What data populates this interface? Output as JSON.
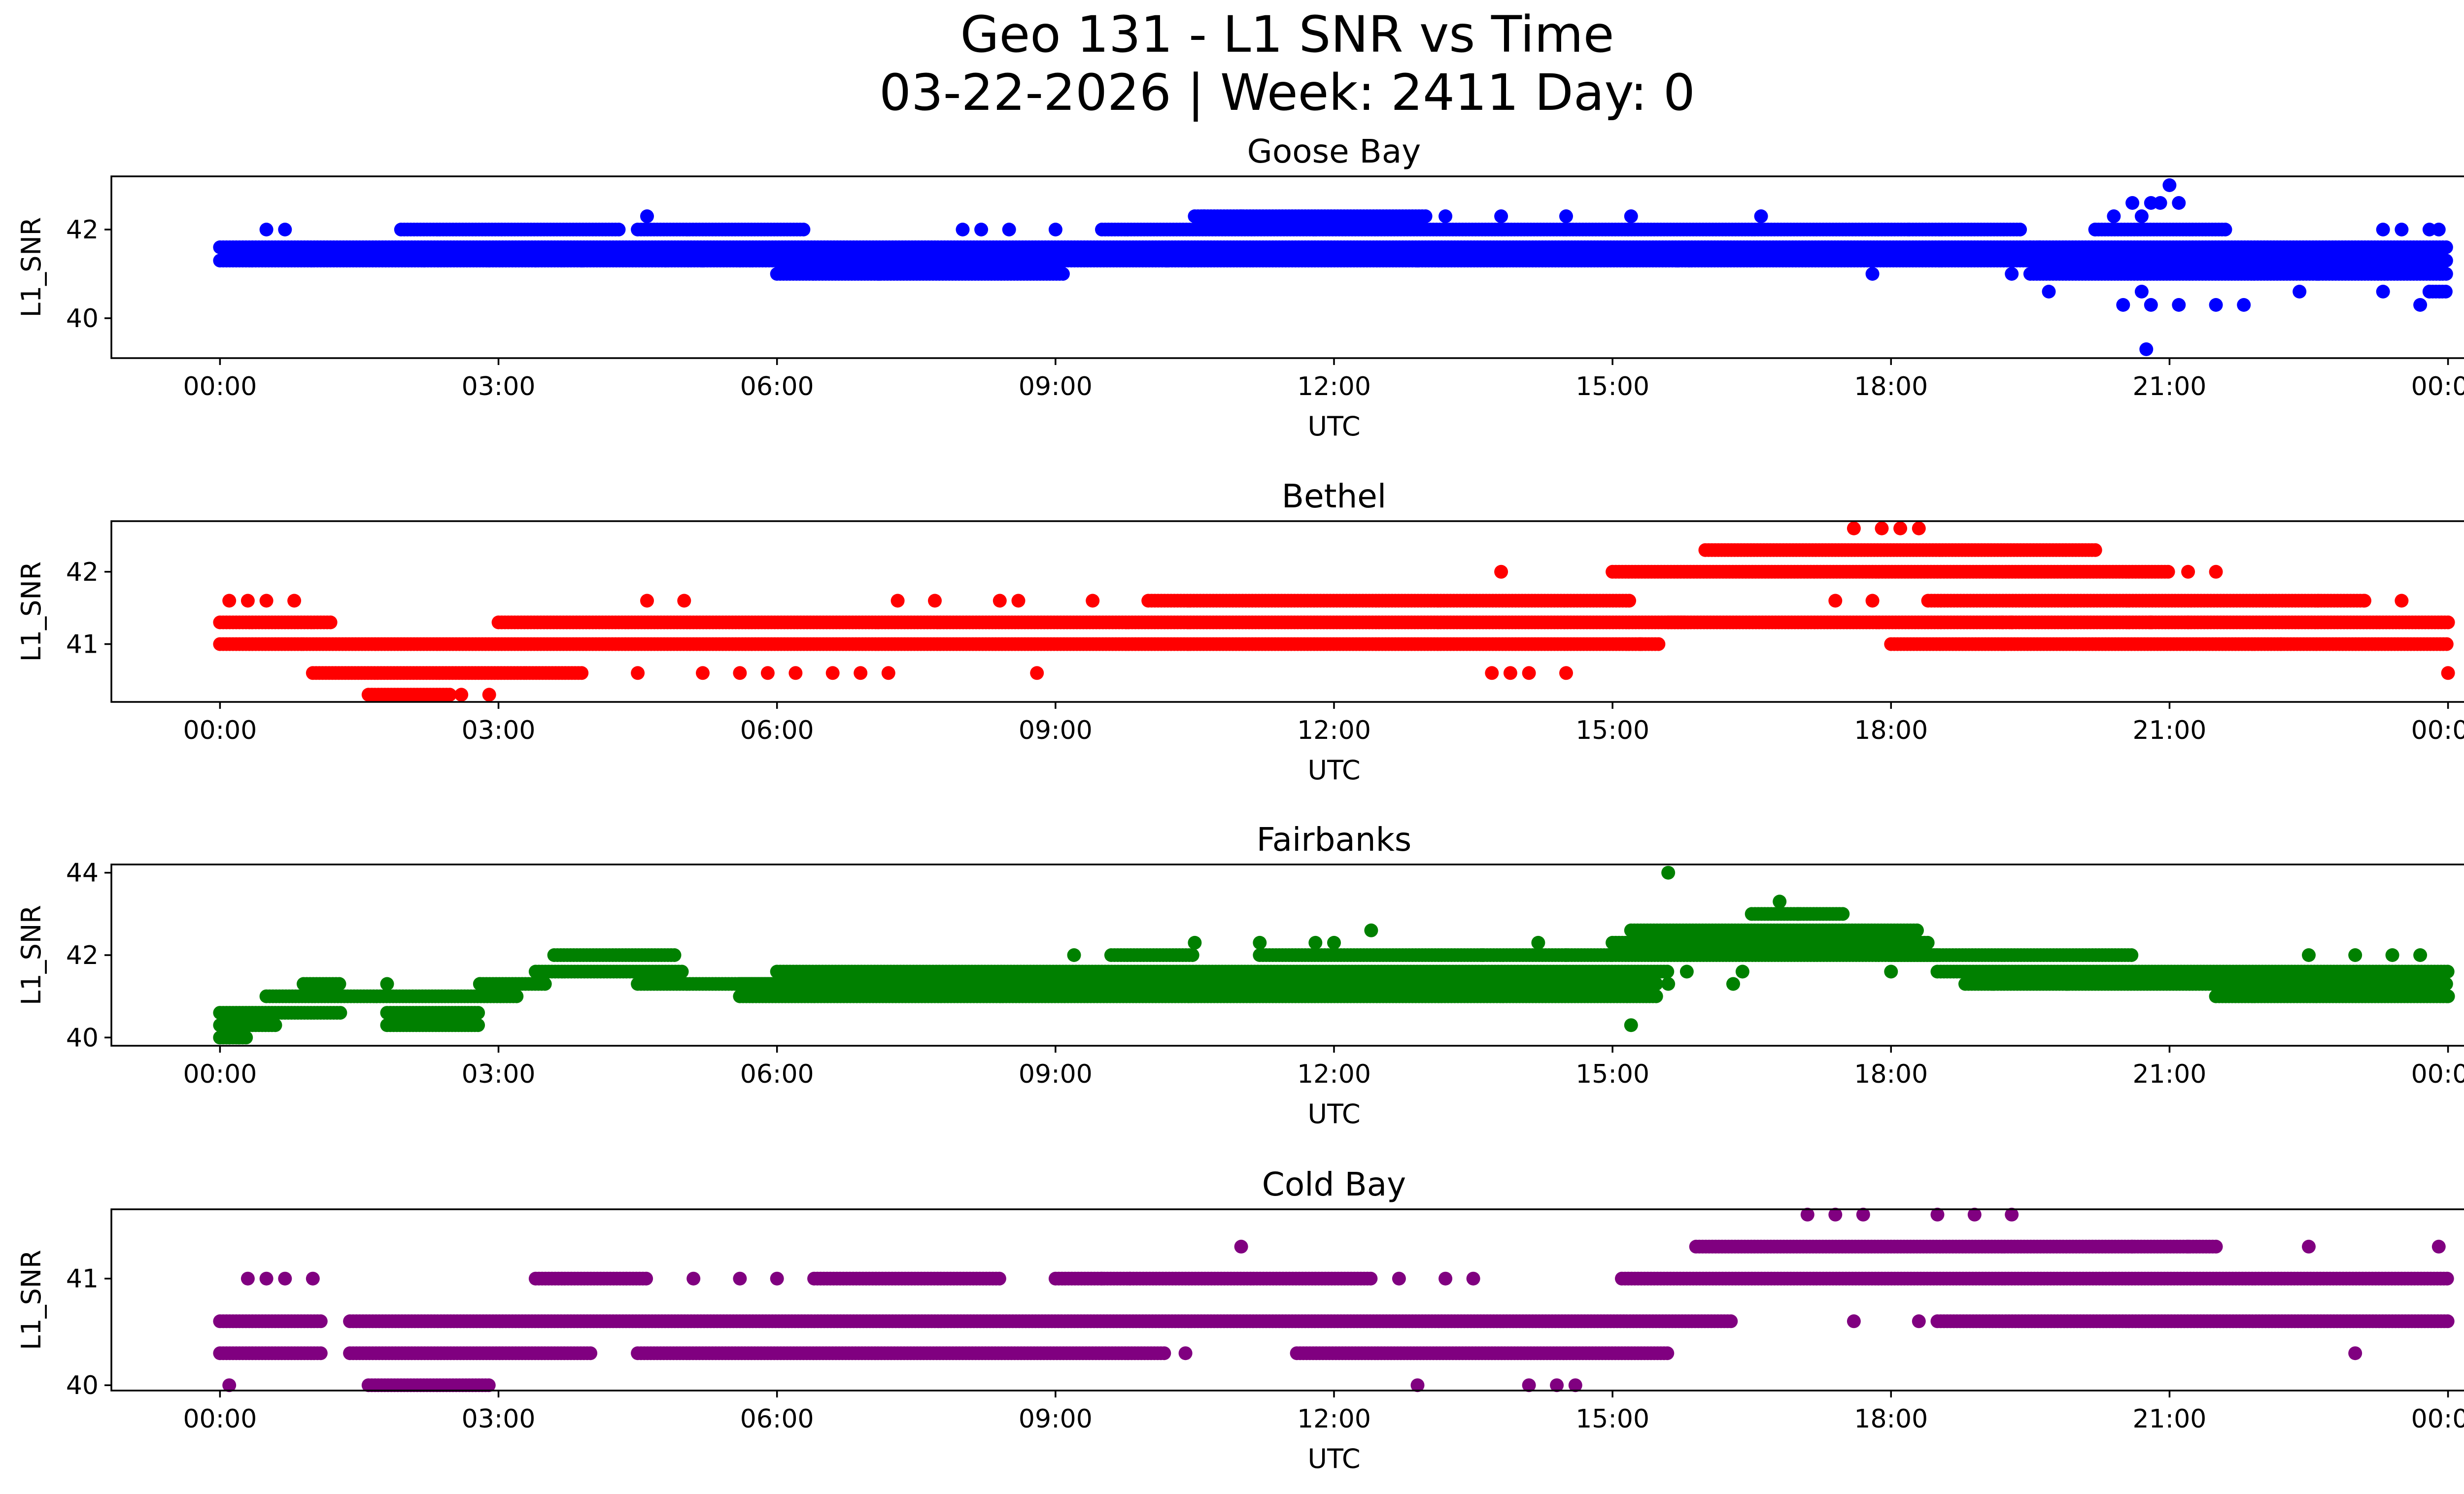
{
  "figure": {
    "title_line1": "Geo 131 - L1 SNR vs Time",
    "title_line2": "03-22-2026 | Week: 2411 Day: 0"
  },
  "chart_data": [
    {
      "type": "scatter",
      "title": "Goose Bay",
      "xlabel": "UTC",
      "ylabel": "L1_SNR",
      "color": "#0000ff",
      "xlim_hours": [
        -1.17,
        25.17
      ],
      "ylim": [
        39.1,
        43.2
      ],
      "xticks_hours": [
        0,
        3,
        6,
        9,
        12,
        15,
        18,
        21,
        24
      ],
      "xtick_labels": [
        "00:00",
        "03:00",
        "06:00",
        "09:00",
        "12:00",
        "15:00",
        "18:00",
        "21:00",
        "00:00"
      ],
      "yticks": [
        40,
        42
      ],
      "ytick_labels": [
        "40",
        "42"
      ],
      "bands": [
        {
          "x_range": [
            0,
            19.5
          ],
          "y_values": [
            41.3,
            41.6
          ]
        },
        {
          "x_range": [
            19.5,
            24
          ],
          "y_values": [
            41.0,
            41.3,
            41.6
          ]
        }
      ],
      "segments": [
        {
          "x_range": [
            1.95,
            4.3
          ],
          "y": 42.0
        },
        {
          "x_range": [
            4.5,
            6.3
          ],
          "y": 42.0
        },
        {
          "x_range": [
            6.0,
            9.1
          ],
          "y": 41.0
        },
        {
          "x_range": [
            9.5,
            18.2
          ],
          "y": 42.0
        },
        {
          "x_range": [
            10.5,
            13.0
          ],
          "y": 42.3
        },
        {
          "x_range": [
            18.2,
            19.4
          ],
          "y": 42.0
        },
        {
          "x_range": [
            20.2,
            21.6
          ],
          "y": 42.0
        },
        {
          "x_range": [
            23.8,
            24.0
          ],
          "y": 40.6
        }
      ],
      "points": [
        [
          0.5,
          42.0
        ],
        [
          0.7,
          42.0
        ],
        [
          2.2,
          41.3
        ],
        [
          2.9,
          41.3
        ],
        [
          3.4,
          41.3
        ],
        [
          3.9,
          41.3
        ],
        [
          4.6,
          42.3
        ],
        [
          4.8,
          41.3
        ],
        [
          5.2,
          41.3
        ],
        [
          5.6,
          41.3
        ],
        [
          7.1,
          41.0
        ],
        [
          8.0,
          42.0
        ],
        [
          8.2,
          42.0
        ],
        [
          8.5,
          42.0
        ],
        [
          9.0,
          42.0
        ],
        [
          10.2,
          41.3
        ],
        [
          10.6,
          42.3
        ],
        [
          11.0,
          42.3
        ],
        [
          12.9,
          41.3
        ],
        [
          13.2,
          42.3
        ],
        [
          13.8,
          42.3
        ],
        [
          14.5,
          42.3
        ],
        [
          15.2,
          42.3
        ],
        [
          15.7,
          41.3
        ],
        [
          16.6,
          42.3
        ],
        [
          17.8,
          41.0
        ],
        [
          19.7,
          40.6
        ],
        [
          20.2,
          42.0
        ],
        [
          20.4,
          42.3
        ],
        [
          20.6,
          42.6
        ],
        [
          20.7,
          42.3
        ],
        [
          20.8,
          42.6
        ],
        [
          20.9,
          42.6
        ],
        [
          21.0,
          43.0
        ],
        [
          21.1,
          42.6
        ],
        [
          20.7,
          40.6
        ],
        [
          20.8,
          40.3
        ],
        [
          21.1,
          40.3
        ],
        [
          21.5,
          40.3
        ],
        [
          21.8,
          40.3
        ],
        [
          20.5,
          40.3
        ],
        [
          20.75,
          39.3
        ],
        [
          22.4,
          40.6
        ],
        [
          22.6,
          41.0
        ],
        [
          23.3,
          42.0
        ],
        [
          23.5,
          42.0
        ],
        [
          23.8,
          42.0
        ],
        [
          23.9,
          42.0
        ],
        [
          23.3,
          40.6
        ],
        [
          23.7,
          40.3
        ],
        [
          23.8,
          40.6
        ],
        [
          19.3,
          41.0
        ],
        [
          19.6,
          41.6
        ]
      ]
    },
    {
      "type": "scatter",
      "title": "Bethel",
      "xlabel": "UTC",
      "ylabel": "L1_SNR",
      "color": "#ff0000",
      "xlim_hours": [
        -1.17,
        25.17
      ],
      "ylim": [
        40.2,
        42.7
      ],
      "xticks_hours": [
        0,
        3,
        6,
        9,
        12,
        15,
        18,
        21,
        24
      ],
      "xtick_labels": [
        "00:00",
        "03:00",
        "06:00",
        "09:00",
        "12:00",
        "15:00",
        "18:00",
        "21:00",
        "00:00"
      ],
      "yticks": [
        41,
        42
      ],
      "ytick_labels": [
        "41",
        "42"
      ],
      "bands": [],
      "segments": [
        {
          "x_range": [
            0,
            1.2
          ],
          "y": 41.3
        },
        {
          "x_range": [
            0,
            0.9
          ],
          "y": 41.0
        },
        {
          "x_range": [
            1.0,
            3.3
          ],
          "y": 40.6
        },
        {
          "x_range": [
            0.9,
            15.5
          ],
          "y": 41.0
        },
        {
          "x_range": [
            3.0,
            15.8
          ],
          "y": 41.3
        },
        {
          "x_range": [
            1.6,
            2.5
          ],
          "y": 40.3
        },
        {
          "x_range": [
            3.3,
            3.9
          ],
          "y": 40.6
        },
        {
          "x_range": [
            10.0,
            15.2
          ],
          "y": 41.6
        },
        {
          "x_range": [
            15.0,
            21.0
          ],
          "y": 42.0
        },
        {
          "x_range": [
            16.0,
            20.2
          ],
          "y": 42.3
        },
        {
          "x_range": [
            18.4,
            23.1
          ],
          "y": 41.6
        },
        {
          "x_range": [
            15.6,
            24.0
          ],
          "y": 41.3
        },
        {
          "x_range": [
            18.0,
            24.0
          ],
          "y": 41.0
        }
      ],
      "points": [
        [
          0.1,
          41.6
        ],
        [
          0.3,
          41.6
        ],
        [
          0.5,
          41.6
        ],
        [
          0.8,
          41.6
        ],
        [
          2.6,
          40.3
        ],
        [
          2.9,
          40.3
        ],
        [
          4.6,
          41.6
        ],
        [
          4.5,
          40.6
        ],
        [
          5.0,
          41.6
        ],
        [
          5.2,
          40.6
        ],
        [
          5.6,
          40.6
        ],
        [
          5.9,
          40.6
        ],
        [
          6.2,
          40.6
        ],
        [
          6.6,
          40.6
        ],
        [
          6.9,
          40.6
        ],
        [
          7.2,
          40.6
        ],
        [
          7.3,
          41.6
        ],
        [
          7.7,
          41.6
        ],
        [
          8.4,
          41.6
        ],
        [
          8.6,
          41.6
        ],
        [
          8.8,
          40.6
        ],
        [
          9.4,
          41.6
        ],
        [
          13.8,
          42.0
        ],
        [
          13.7,
          40.6
        ],
        [
          13.9,
          40.6
        ],
        [
          14.1,
          40.6
        ],
        [
          14.5,
          40.6
        ],
        [
          15.3,
          41.0
        ],
        [
          17.6,
          42.6
        ],
        [
          17.9,
          42.6
        ],
        [
          18.1,
          42.6
        ],
        [
          18.3,
          42.6
        ],
        [
          17.4,
          41.6
        ],
        [
          17.8,
          41.6
        ],
        [
          19.2,
          41.3
        ],
        [
          19.3,
          41.3
        ],
        [
          21.2,
          42.0
        ],
        [
          21.5,
          42.0
        ],
        [
          21.2,
          41.3
        ],
        [
          22.2,
          41.0
        ],
        [
          22.6,
          41.6
        ],
        [
          23.1,
          41.6
        ],
        [
          23.5,
          41.6
        ],
        [
          24.0,
          40.6
        ],
        [
          20.8,
          41.3
        ]
      ]
    },
    {
      "type": "scatter",
      "title": "Fairbanks",
      "xlabel": "UTC",
      "ylabel": "L1_SNR",
      "color": "#008000",
      "xlim_hours": [
        -1.17,
        25.17
      ],
      "ylim": [
        39.8,
        44.2
      ],
      "xticks_hours": [
        0,
        3,
        6,
        9,
        12,
        15,
        18,
        21,
        24
      ],
      "xtick_labels": [
        "00:00",
        "03:00",
        "06:00",
        "09:00",
        "12:00",
        "15:00",
        "18:00",
        "21:00",
        "00:00"
      ],
      "yticks": [
        40,
        42,
        44
      ],
      "ytick_labels": [
        "40",
        "42",
        "44"
      ],
      "bands": [],
      "segments": [
        {
          "x_range": [
            0,
            0.3
          ],
          "y": 40.0
        },
        {
          "x_range": [
            0,
            0.6
          ],
          "y": 40.3
        },
        {
          "x_range": [
            0,
            1.3
          ],
          "y": 40.6
        },
        {
          "x_range": [
            0.5,
            3.2
          ],
          "y": 41.0
        },
        {
          "x_range": [
            0.9,
            1.3
          ],
          "y": 41.3
        },
        {
          "x_range": [
            1.8,
            2.8
          ],
          "y": 40.6
        },
        {
          "x_range": [
            1.8,
            2.8
          ],
          "y": 40.3
        },
        {
          "x_range": [
            2.8,
            3.5
          ],
          "y": 41.3
        },
        {
          "x_range": [
            3.4,
            5.0
          ],
          "y": 41.6
        },
        {
          "x_range": [
            3.6,
            4.9
          ],
          "y": 42.0
        },
        {
          "x_range": [
            4.5,
            6.3
          ],
          "y": 41.3
        },
        {
          "x_range": [
            5.6,
            15.5
          ],
          "y": 41.3
        },
        {
          "x_range": [
            5.6,
            15.5
          ],
          "y": 41.0
        },
        {
          "x_range": [
            6.0,
            15.6
          ],
          "y": 41.6
        },
        {
          "x_range": [
            9.6,
            10.5
          ],
          "y": 42.0
        },
        {
          "x_range": [
            11.2,
            15.0
          ],
          "y": 42.0
        },
        {
          "x_range": [
            15.0,
            18.4
          ],
          "y": 42.3
        },
        {
          "x_range": [
            15.2,
            18.3
          ],
          "y": 42.6
        },
        {
          "x_range": [
            15.0,
            18.5
          ],
          "y": 42.0
        },
        {
          "x_range": [
            16.5,
            17.5
          ],
          "y": 43.0
        },
        {
          "x_range": [
            18.0,
            20.6
          ],
          "y": 42.0
        },
        {
          "x_range": [
            18.5,
            24.0
          ],
          "y": 41.6
        },
        {
          "x_range": [
            18.8,
            24.0
          ],
          "y": 41.3
        },
        {
          "x_range": [
            21.5,
            24.0
          ],
          "y": 41.0
        }
      ],
      "points": [
        [
          2.8,
          41.3
        ],
        [
          1.8,
          41.3
        ],
        [
          9.2,
          42.0
        ],
        [
          10.5,
          42.3
        ],
        [
          11.2,
          42.3
        ],
        [
          11.8,
          42.3
        ],
        [
          12.0,
          42.3
        ],
        [
          12.4,
          42.6
        ],
        [
          13.6,
          42.0
        ],
        [
          14.2,
          42.3
        ],
        [
          14.5,
          42.0
        ],
        [
          15.6,
          44.0
        ],
        [
          15.2,
          40.3
        ],
        [
          15.6,
          41.3
        ],
        [
          15.8,
          41.6
        ],
        [
          16.8,
          43.3
        ],
        [
          16.3,
          41.3
        ],
        [
          16.4,
          41.6
        ],
        [
          17.0,
          43.0
        ],
        [
          18.0,
          41.6
        ],
        [
          19.1,
          41.3
        ],
        [
          19.9,
          41.3
        ],
        [
          22.5,
          42.0
        ],
        [
          23.0,
          42.0
        ],
        [
          23.4,
          42.0
        ],
        [
          23.7,
          42.0
        ],
        [
          24.0,
          41.0
        ],
        [
          0.0,
          40.0
        ],
        [
          0.1,
          40.0
        ],
        [
          0.2,
          40.0
        ]
      ]
    },
    {
      "type": "scatter",
      "title": "Cold Bay",
      "xlabel": "UTC",
      "ylabel": "L1_SNR",
      "color": "#800080",
      "xlim_hours": [
        -1.17,
        25.17
      ],
      "ylim": [
        39.95,
        41.65
      ],
      "xticks_hours": [
        0,
        3,
        6,
        9,
        12,
        15,
        18,
        21,
        24
      ],
      "xtick_labels": [
        "00:00",
        "03:00",
        "06:00",
        "09:00",
        "12:00",
        "15:00",
        "18:00",
        "21:00",
        "00:00"
      ],
      "yticks": [
        40,
        41
      ],
      "ytick_labels": [
        "40",
        "41"
      ],
      "bands": [],
      "segments": [
        {
          "x_range": [
            0,
            1.1
          ],
          "y": 40.6
        },
        {
          "x_range": [
            0,
            1.1
          ],
          "y": 40.3
        },
        {
          "x_range": [
            1.4,
            16.3
          ],
          "y": 40.6
        },
        {
          "x_range": [
            1.4,
            4.0
          ],
          "y": 40.3
        },
        {
          "x_range": [
            4.5,
            10.2
          ],
          "y": 40.3
        },
        {
          "x_range": [
            11.6,
            15.6
          ],
          "y": 40.3
        },
        {
          "x_range": [
            1.6,
            2.9
          ],
          "y": 40.0
        },
        {
          "x_range": [
            3.4,
            4.6
          ],
          "y": 41.0
        },
        {
          "x_range": [
            6.4,
            8.4
          ],
          "y": 41.0
        },
        {
          "x_range": [
            9.0,
            12.4
          ],
          "y": 41.0
        },
        {
          "x_range": [
            15.1,
            24.0
          ],
          "y": 41.0
        },
        {
          "x_range": [
            15.9,
            21.5
          ],
          "y": 41.3
        },
        {
          "x_range": [
            18.5,
            24.0
          ],
          "y": 40.6
        }
      ],
      "points": [
        [
          0.1,
          40.0
        ],
        [
          0.3,
          41.0
        ],
        [
          0.5,
          41.0
        ],
        [
          0.7,
          41.0
        ],
        [
          1.0,
          41.0
        ],
        [
          5.1,
          41.0
        ],
        [
          5.6,
          41.0
        ],
        [
          6.0,
          41.0
        ],
        [
          11.0,
          41.3
        ],
        [
          12.7,
          41.0
        ],
        [
          13.2,
          41.0
        ],
        [
          13.5,
          41.0
        ],
        [
          12.9,
          40.0
        ],
        [
          14.1,
          40.0
        ],
        [
          14.4,
          40.0
        ],
        [
          14.6,
          40.0
        ],
        [
          17.1,
          41.6
        ],
        [
          17.4,
          41.6
        ],
        [
          17.7,
          41.6
        ],
        [
          18.5,
          41.6
        ],
        [
          18.9,
          41.6
        ],
        [
          19.3,
          41.6
        ],
        [
          17.6,
          40.6
        ],
        [
          18.3,
          40.6
        ],
        [
          20.6,
          41.3
        ],
        [
          21.2,
          41.3
        ],
        [
          22.5,
          41.3
        ],
        [
          23.0,
          40.3
        ],
        [
          23.9,
          41.3
        ],
        [
          10.4,
          40.3
        ],
        [
          9.5,
          41.0
        ],
        [
          9.8,
          41.0
        ]
      ]
    }
  ]
}
